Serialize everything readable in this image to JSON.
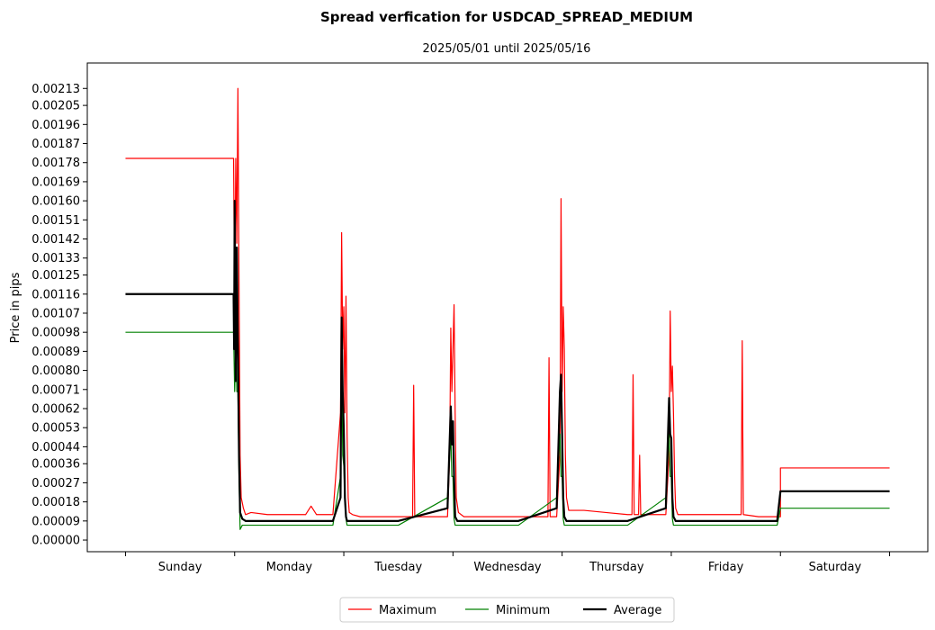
{
  "chart_data": {
    "type": "line",
    "title": "Spread verfication for USDCAD_SPREAD_MEDIUM",
    "subtitle": "2025/05/01 until 2025/05/16",
    "xlabel": "",
    "ylabel": "Price in pips",
    "xlim": [
      -0.35,
      7.35
    ],
    "ylim": [
      -5.5e-05,
      0.00225
    ],
    "grid": false,
    "legend_position": "bottom-center",
    "x_tick_labels": [
      "Sunday",
      "Monday",
      "Tuesday",
      "Wednesday",
      "Thursday",
      "Friday",
      "Saturday"
    ],
    "y_tick_labels": [
      "0.00000",
      "0.00009",
      "0.00018",
      "0.00027",
      "0.00036",
      "0.00044",
      "0.00053",
      "0.00062",
      "0.00071",
      "0.00080",
      "0.00089",
      "0.00098",
      "0.00107",
      "0.00116",
      "0.00125",
      "0.00133",
      "0.00142",
      "0.00151",
      "0.00160",
      "0.00169",
      "0.00178",
      "0.00187",
      "0.00196",
      "0.00205",
      "0.00213"
    ],
    "y_tick_values": [
      0.0,
      9e-05,
      0.00018,
      0.00027,
      0.00036,
      0.00044,
      0.00053,
      0.00062,
      0.00071,
      0.0008,
      0.00089,
      0.00098,
      0.00107,
      0.00116,
      0.00125,
      0.00133,
      0.00142,
      0.00151,
      0.0016,
      0.00169,
      0.00178,
      0.00187,
      0.00196,
      0.00205,
      0.00213
    ],
    "series": [
      {
        "name": "Maximum",
        "color": "#ff0000",
        "width": 1.2,
        "x": [
          0.0,
          0.99,
          1.0,
          1.01,
          1.02,
          1.03,
          1.04,
          1.05,
          1.06,
          1.08,
          1.1,
          1.15,
          1.3,
          1.5,
          1.65,
          1.7,
          1.75,
          1.8,
          1.9,
          1.97,
          1.98,
          1.99,
          2.0,
          2.01,
          2.02,
          2.03,
          2.04,
          2.05,
          2.08,
          2.15,
          2.3,
          2.5,
          2.63,
          2.64,
          2.65,
          2.8,
          2.95,
          2.97,
          2.98,
          2.99,
          3.0,
          3.01,
          3.02,
          3.03,
          3.05,
          3.1,
          3.3,
          3.55,
          3.6,
          3.7,
          3.87,
          3.88,
          3.89,
          3.95,
          3.98,
          3.99,
          4.0,
          4.01,
          4.02,
          4.03,
          4.04,
          4.06,
          4.1,
          4.2,
          4.4,
          4.6,
          4.64,
          4.65,
          4.66,
          4.7,
          4.71,
          4.72,
          4.73,
          4.8,
          4.95,
          4.98,
          4.99,
          5.0,
          5.01,
          5.02,
          5.03,
          5.04,
          5.06,
          5.1,
          5.3,
          5.5,
          5.64,
          5.65,
          5.66,
          5.8,
          5.97,
          6.0,
          6.0,
          6.5,
          7.0
        ],
        "y": [
          0.0018,
          0.0018,
          0.0011,
          0.0018,
          0.0014,
          0.00213,
          0.0012,
          0.0004,
          0.0002,
          0.00015,
          0.00012,
          0.00013,
          0.00012,
          0.00012,
          0.00012,
          0.00016,
          0.00012,
          0.00012,
          0.00012,
          0.0006,
          0.00145,
          0.0009,
          0.0011,
          0.0006,
          0.00115,
          0.0005,
          0.0002,
          0.00013,
          0.00012,
          0.00011,
          0.00011,
          0.00011,
          0.00011,
          0.00073,
          0.00011,
          0.00011,
          0.00011,
          0.0004,
          0.001,
          0.0007,
          0.0009,
          0.00111,
          0.0006,
          0.0002,
          0.00013,
          0.00011,
          0.00011,
          0.00011,
          0.00011,
          0.00011,
          0.00011,
          0.00086,
          0.00011,
          0.00011,
          0.0004,
          0.00161,
          0.0007,
          0.0011,
          0.0009,
          0.0004,
          0.0002,
          0.00014,
          0.00014,
          0.00014,
          0.00013,
          0.00012,
          0.00012,
          0.00078,
          0.00012,
          0.00012,
          0.0004,
          0.00012,
          0.00012,
          0.00012,
          0.00012,
          0.0004,
          0.00108,
          0.0007,
          0.00082,
          0.0006,
          0.0003,
          0.00015,
          0.00012,
          0.00012,
          0.00012,
          0.00012,
          0.00012,
          0.00094,
          0.00012,
          0.00011,
          0.00011,
          0.00011,
          0.00034,
          0.00034,
          0.00034
        ]
      },
      {
        "name": "Minimum",
        "color": "#008000",
        "width": 1.2,
        "x": [
          0.0,
          0.99,
          1.0,
          1.01,
          1.02,
          1.03,
          1.04,
          1.05,
          1.07,
          1.1,
          1.5,
          1.9,
          1.97,
          1.98,
          1.99,
          2.0,
          2.01,
          2.02,
          2.03,
          2.05,
          2.1,
          2.5,
          2.95,
          2.98,
          2.99,
          3.0,
          3.01,
          3.02,
          3.04,
          3.1,
          3.6,
          3.95,
          3.98,
          3.99,
          4.0,
          4.01,
          4.02,
          4.04,
          4.1,
          4.6,
          4.95,
          4.98,
          4.99,
          5.0,
          5.01,
          5.02,
          5.04,
          5.1,
          5.6,
          5.97,
          6.0,
          6.0,
          6.5,
          7.0
        ],
        "y": [
          0.00098,
          0.00098,
          0.0007,
          0.00094,
          0.0007,
          0.0007,
          0.0003,
          5e-05,
          7e-05,
          7e-05,
          7e-05,
          7e-05,
          0.0003,
          0.0009,
          0.0004,
          0.00035,
          0.0002,
          0.0001,
          7e-05,
          7e-05,
          7e-05,
          7e-05,
          0.0002,
          0.0005,
          0.0003,
          0.0003,
          0.0001,
          7e-05,
          7e-05,
          7e-05,
          7e-05,
          0.0002,
          0.0005,
          0.0003,
          0.0003,
          0.0001,
          7e-05,
          7e-05,
          7e-05,
          7e-05,
          0.0002,
          0.0005,
          0.0003,
          0.0003,
          0.0001,
          7e-05,
          7e-05,
          7e-05,
          7e-05,
          7e-05,
          0.00015,
          0.00015,
          0.00015,
          0.00015
        ]
      },
      {
        "name": "Average",
        "color": "#000000",
        "width": 2.2,
        "x": [
          0.0,
          0.99,
          0.995,
          1.0,
          1.01,
          1.02,
          1.03,
          1.04,
          1.05,
          1.07,
          1.1,
          1.5,
          1.9,
          1.97,
          1.98,
          1.99,
          2.0,
          2.01,
          2.02,
          2.03,
          2.05,
          2.1,
          2.5,
          2.95,
          2.98,
          2.99,
          3.0,
          3.01,
          3.02,
          3.04,
          3.1,
          3.6,
          3.95,
          3.98,
          3.99,
          4.0,
          4.01,
          4.02,
          4.04,
          4.1,
          4.6,
          4.95,
          4.98,
          4.99,
          5.0,
          5.01,
          5.02,
          5.04,
          5.1,
          5.6,
          5.97,
          6.0,
          6.0,
          6.5,
          7.0
        ],
        "y": [
          0.00116,
          0.00116,
          0.0009,
          0.0016,
          0.00075,
          0.00138,
          0.0009,
          0.0004,
          0.00013,
          0.0001,
          9e-05,
          9e-05,
          9e-05,
          0.0002,
          0.00105,
          0.0007,
          0.00052,
          0.0002,
          0.00011,
          9e-05,
          9e-05,
          9e-05,
          9e-05,
          0.00015,
          0.00063,
          0.00045,
          0.00056,
          0.0003,
          0.00011,
          9e-05,
          9e-05,
          9e-05,
          0.00015,
          0.0007,
          0.00078,
          0.0005,
          0.0002,
          0.00011,
          9e-05,
          9e-05,
          9e-05,
          0.00015,
          0.00067,
          0.0005,
          0.00048,
          0.0002,
          0.00011,
          9e-05,
          9e-05,
          9e-05,
          9e-05,
          0.00023,
          0.00023,
          0.00023,
          0.00023
        ]
      }
    ]
  }
}
